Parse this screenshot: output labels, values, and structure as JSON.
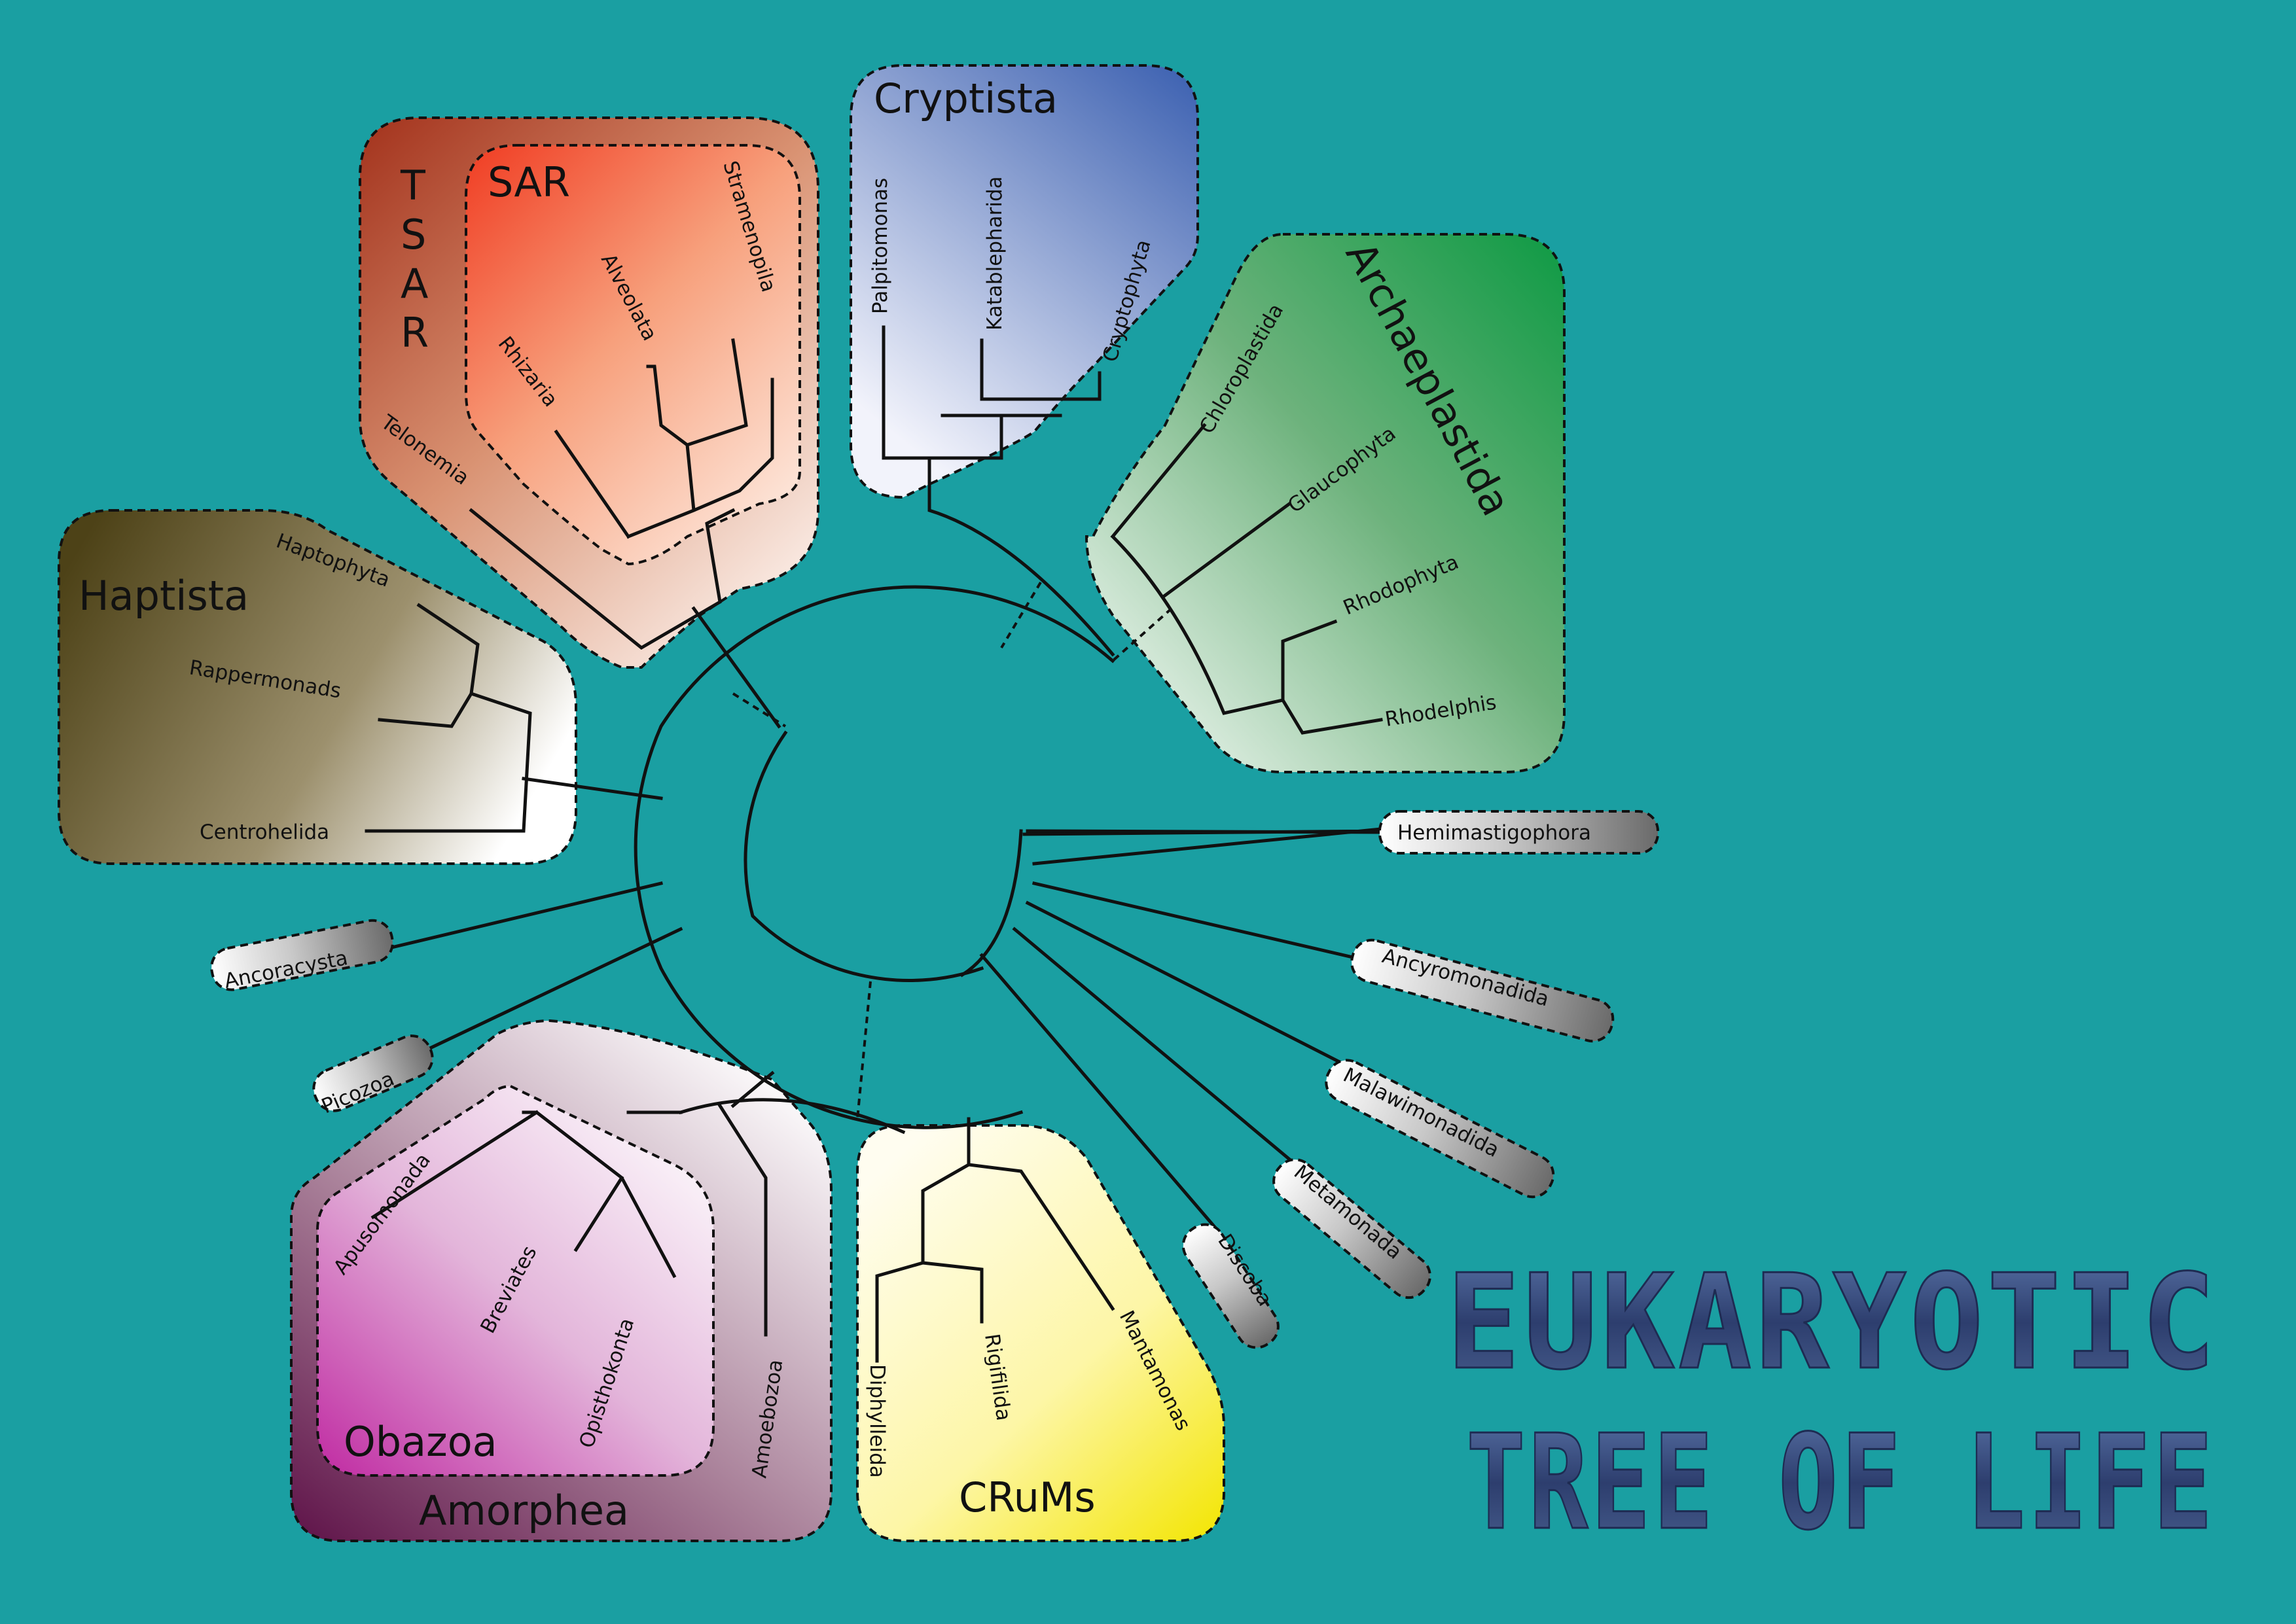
{
  "title": {
    "line1": "EUKARYOTIC",
    "line2": "TREE OF LIFE"
  },
  "groups": {
    "cryptista": "Cryptista",
    "archaeplastida": "Archaeplastida",
    "haptista": "Haptista",
    "tsar_t": "T",
    "tsar_s": "S",
    "tsar_a": "A",
    "tsar_r": "R",
    "sar": "SAR",
    "obazoa": "Obazoa",
    "amorphea": "Amorphea",
    "crums": "CRuMs"
  },
  "colors": {
    "background": "#1a9fa2",
    "cryptista": "#3a5fb0",
    "archaeplastida": "#0e9a44",
    "haptista": "#5a4c1c",
    "tsar": "#a83a22",
    "sar": "#f04426",
    "amorphea": "#6e1a55",
    "obazoa": "#c236a4",
    "crums": "#f2e400"
  },
  "taxa": {
    "palpitomonas": "Palpitomonas",
    "katablepharida": "Katablepharida",
    "cryptophyta": "Cryptophyta",
    "chloroplastida": "Chloroplastida",
    "glaucophyta": "Glaucophyta",
    "rhodophyta": "Rhodophyta",
    "rhodelphis": "Rhodelphis",
    "stramenopila": "Stramenopila",
    "alveolata": "Alveolata",
    "rhizaria": "Rhizaria",
    "telonemia": "Telonemia",
    "haptophyta": "Haptophyta",
    "rappermonads": "Rappermonads",
    "centrohelida": "Centrohelida",
    "ancoracysta": "Ancoracysta",
    "picozoa": "Picozoa",
    "apusomonada": "Apusomonada",
    "breviates": "Breviates",
    "opisthokonta": "Opisthokonta",
    "amoebozoa": "Amoebozoa",
    "diphylleida": "Diphylleida",
    "rigifilida": "Rigifilida",
    "mantamonas": "Mantamonas",
    "discoba": "Discoba",
    "metamonada": "Metamonada",
    "malawimonadida": "Malawimonadida",
    "ancyromonadida": "Ancyromonadida",
    "hemimastigophora": "Hemimastigophora"
  }
}
